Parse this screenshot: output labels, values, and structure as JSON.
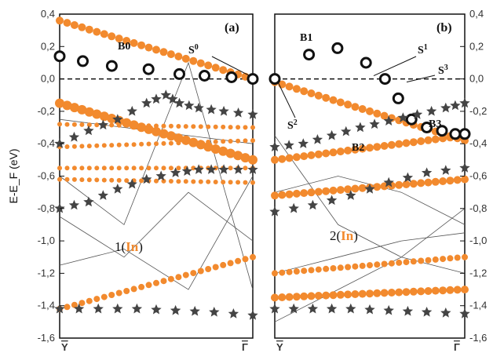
{
  "chart_data": [
    {
      "type": "line",
      "panel": "(a)",
      "ylabel": "E-E_F (eV)",
      "ylim": [
        -1.6,
        0.4
      ],
      "yticks": [
        "0,4",
        "0,2",
        "0,0",
        "-0,2",
        "-0,4",
        "-0,6",
        "-0,8",
        "-1,0",
        "-1,2",
        "-1,4",
        "-1,6"
      ],
      "xtick_left": "Y",
      "xtick_right": "Γ",
      "annotations": {
        "band": "B0",
        "state": "S",
        "state_sup": "0",
        "film_prefix": "1(",
        "film_element": "In",
        "film_suffix": ")"
      },
      "series": [
        {
          "name": "",
          "style": "circles-open",
          "x": [
            0,
            0.12,
            0.27,
            0.46,
            0.62,
            0.75,
            0.89,
            1.0
          ],
          "y": [
            0.14,
            0.11,
            0.08,
            0.06,
            0.03,
            0.02,
            0.01,
            0.0
          ]
        },
        {
          "name": "",
          "style": "stars",
          "x": [
            0,
            0.15,
            0.3,
            0.45,
            0.55,
            0.62,
            0.72,
            0.85,
            1.0
          ],
          "y": [
            -0.4,
            -0.32,
            -0.25,
            -0.15,
            -0.1,
            -0.15,
            -0.18,
            -0.2,
            -0.22
          ]
        },
        {
          "name": "",
          "style": "stars",
          "x": [
            0,
            0.15,
            0.3,
            0.45,
            0.6,
            0.72,
            0.85,
            1.0
          ],
          "y": [
            -0.8,
            -0.76,
            -0.68,
            -0.62,
            -0.58,
            -0.56,
            -0.56,
            -0.56
          ]
        },
        {
          "name": "",
          "style": "stars",
          "x": [
            0,
            0.2,
            0.4,
            0.6,
            0.8,
            1.0
          ],
          "y": [
            -1.42,
            -1.42,
            -1.42,
            -1.43,
            -1.44,
            -1.46
          ]
        }
      ]
    },
    {
      "type": "line",
      "panel": "(b)",
      "ylim": [
        -1.6,
        0.4
      ],
      "yticks": [
        "0,4",
        "0,2",
        "0,0",
        "-0,2",
        "-0,4",
        "-0,6",
        "-0,8",
        "-1,0",
        "-1,2",
        "-1,4",
        "-1,6"
      ],
      "xtick_left": "Y",
      "xtick_right": "Γ",
      "annotations": {
        "band1": "B1",
        "band2": "B2",
        "band3": "B3",
        "s1": "1",
        "s2": "2",
        "s3": "3",
        "state": "S",
        "film_prefix": "2(",
        "film_element": "In",
        "film_suffix": ")"
      },
      "series": [
        {
          "name": "",
          "style": "circles-open",
          "x": [
            0,
            0.18,
            0.33,
            0.48,
            0.58,
            0.65,
            0.72,
            0.8,
            0.88,
            0.95,
            1.0
          ],
          "y": [
            0.0,
            0.15,
            0.19,
            0.1,
            0.0,
            -0.12,
            -0.25,
            -0.3,
            -0.32,
            -0.34,
            -0.34
          ]
        },
        {
          "name": "",
          "style": "stars",
          "x": [
            0,
            0.15,
            0.3,
            0.45,
            0.6,
            0.75,
            0.9,
            1.0
          ],
          "y": [
            -0.42,
            -0.4,
            -0.35,
            -0.3,
            -0.26,
            -0.22,
            -0.18,
            -0.15
          ]
        },
        {
          "name": "",
          "style": "stars",
          "x": [
            0,
            0.2,
            0.4,
            0.6,
            0.8,
            1.0
          ],
          "y": [
            -0.82,
            -0.78,
            -0.72,
            -0.64,
            -0.58,
            -0.55
          ]
        },
        {
          "name": "",
          "style": "stars",
          "x": [
            0,
            0.2,
            0.4,
            0.6,
            0.8,
            1.0
          ],
          "y": [
            -1.42,
            -1.42,
            -1.42,
            -1.43,
            -1.44,
            -1.45
          ]
        }
      ]
    }
  ]
}
